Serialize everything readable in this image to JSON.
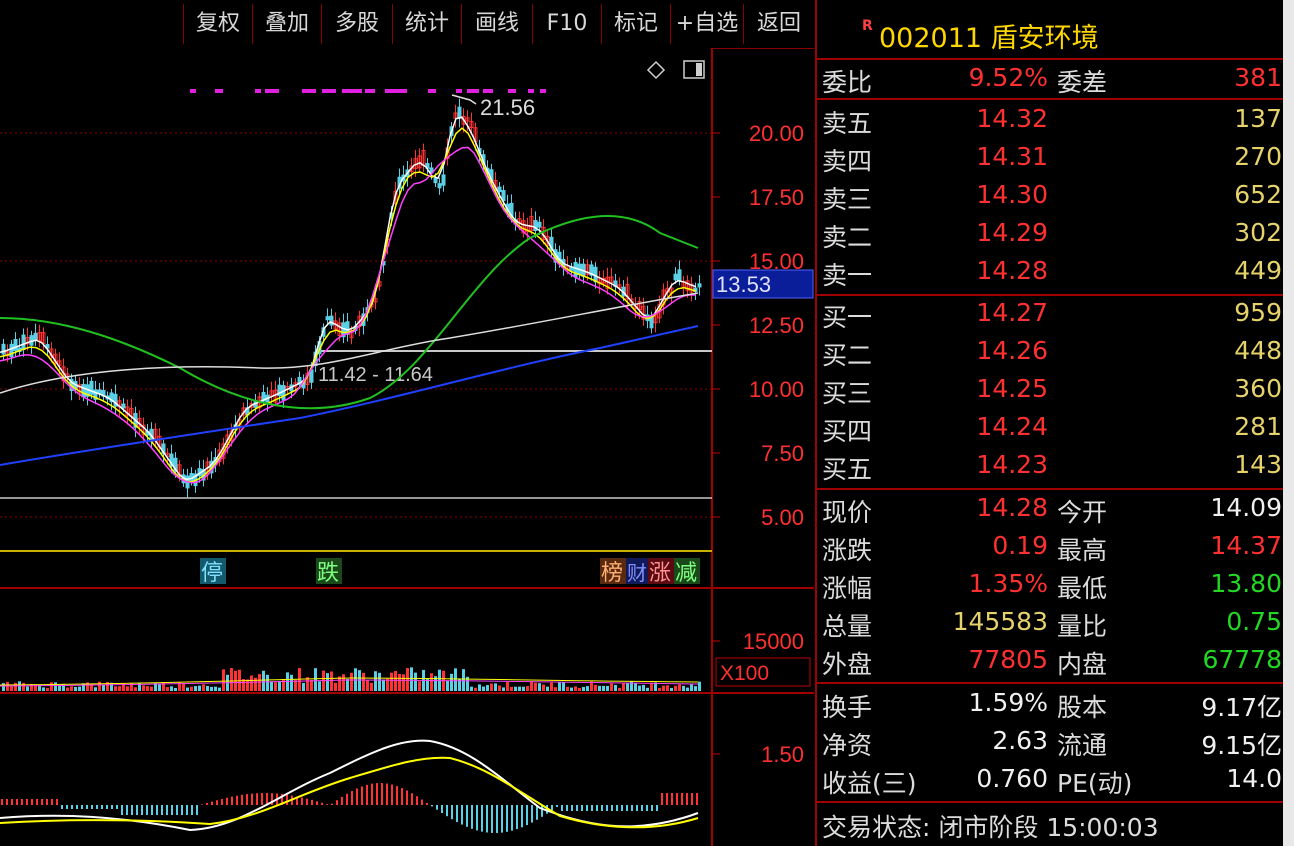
{
  "toolbar": {
    "items": [
      "复权",
      "叠加",
      "多股",
      "统计",
      "画线",
      "F10",
      "标记",
      "+自选",
      "返回"
    ]
  },
  "chart": {
    "price_ticks": [
      "20.00",
      "17.50",
      "15.00",
      "12.50",
      "10.00",
      "7.50",
      "5.00"
    ],
    "current_price_label": "13.53",
    "high_label": "21.56",
    "range_label": "11.42 - 11.64",
    "signals": [
      "停",
      "跌"
    ],
    "right_tags": [
      "榜",
      "财",
      "涨",
      "减"
    ],
    "volume_tick": "15000",
    "volume_unit": "X100",
    "macd_tick": "1.50",
    "colors": {
      "up": "#ff3333",
      "down": "#5ad0e6",
      "ma5": "#ffffff",
      "ma10": "#ffff00",
      "ma20": "#ff40ff",
      "ma60": "#20c020",
      "ma120": "#dddddd",
      "ma250": "#2040ff"
    }
  },
  "quote": {
    "r_badge": "R",
    "title": "002011 盾安环境",
    "weibi": {
      "label": "委比",
      "value": "9.52%",
      "label2": "委差",
      "value2": "381"
    },
    "asks": [
      {
        "label": "卖五",
        "price": "14.32",
        "vol": "137"
      },
      {
        "label": "卖四",
        "price": "14.31",
        "vol": "270"
      },
      {
        "label": "卖三",
        "price": "14.30",
        "vol": "652"
      },
      {
        "label": "卖二",
        "price": "14.29",
        "vol": "302"
      },
      {
        "label": "卖一",
        "price": "14.28",
        "vol": "449"
      }
    ],
    "bids": [
      {
        "label": "买一",
        "price": "14.27",
        "vol": "959"
      },
      {
        "label": "买二",
        "price": "14.26",
        "vol": "448"
      },
      {
        "label": "买三",
        "price": "14.25",
        "vol": "360"
      },
      {
        "label": "买四",
        "price": "14.24",
        "vol": "281"
      },
      {
        "label": "买五",
        "price": "14.23",
        "vol": "143"
      }
    ],
    "stats": [
      {
        "l1": "现价",
        "v1": "14.28",
        "c1": "red",
        "l2": "今开",
        "v2": "14.09",
        "c2": "white"
      },
      {
        "l1": "涨跌",
        "v1": "0.19",
        "c1": "red",
        "l2": "最高",
        "v2": "14.37",
        "c2": "red"
      },
      {
        "l1": "涨幅",
        "v1": "1.35%",
        "c1": "red",
        "l2": "最低",
        "v2": "13.80",
        "c2": "green"
      },
      {
        "l1": "总量",
        "v1": "145583",
        "c1": "yellow",
        "l2": "量比",
        "v2": "0.75",
        "c2": "green"
      },
      {
        "l1": "外盘",
        "v1": "77805",
        "c1": "red",
        "l2": "内盘",
        "v2": "67778",
        "c2": "green"
      }
    ],
    "fundamentals": [
      {
        "l1": "换手",
        "v1": "1.59%",
        "l2": "股本",
        "v2": "9.17亿"
      },
      {
        "l1": "净资",
        "v1": "2.63",
        "l2": "流通",
        "v2": "9.15亿"
      },
      {
        "l1": "收益(三)",
        "v1": "0.760",
        "l2": "PE(动)",
        "v2": "14.0"
      }
    ],
    "status": "交易状态: 闭市阶段 15:00:03"
  }
}
